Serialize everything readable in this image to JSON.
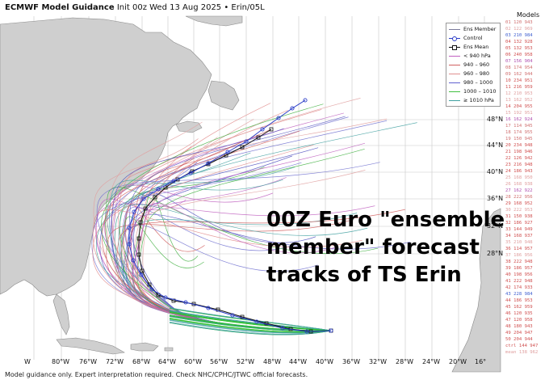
{
  "header": {
    "title_bold": "ECMWF Model Guidance",
    "title_rest": "Init 00z Wed 13 Aug 2025 • Erin/05L"
  },
  "footer": "Model guidance only. Expert interpretation required. Check NHC/CPHC/JTWC official forecasts.",
  "annotation": {
    "line1": "00Z Euro \"ensemble",
    "line2": "member\" forecast",
    "line3": "tracks of TS Erin"
  },
  "legend": {
    "items": [
      {
        "label": "Ens Member",
        "color": "#7a7a9a",
        "style": "line"
      },
      {
        "label": "Control",
        "color": "#2a3cc8",
        "style": "circle"
      },
      {
        "label": "Ens Mean",
        "color": "#111111",
        "style": "square"
      },
      {
        "label": "< 940 hPa",
        "color": "#c060c0",
        "style": "line"
      },
      {
        "label": "940 – 960",
        "color": "#d06060",
        "style": "line"
      },
      {
        "label": "960 – 980",
        "color": "#e09090",
        "style": "line"
      },
      {
        "label": "980 – 1000",
        "color": "#6060d0",
        "style": "line"
      },
      {
        "label": "1000 – 1010",
        "color": "#40c040",
        "style": "line"
      },
      {
        "label": "≥ 1010 hPa",
        "color": "#40a0a0",
        "style": "line"
      }
    ]
  },
  "models": {
    "title": "Models",
    "items": [
      {
        "label": "01 120 943",
        "color": "#d07070"
      },
      {
        "label": "02 122 969",
        "color": "#e0a0a0"
      },
      {
        "label": "03 210 984",
        "color": "#4060d0"
      },
      {
        "label": "04 132 928",
        "color": "#d05050"
      },
      {
        "label": "05 132 953",
        "color": "#d05050"
      },
      {
        "label": "06 240 958",
        "color": "#d05050"
      },
      {
        "label": "07 156 904",
        "color": "#b050b0"
      },
      {
        "label": "08 174 954",
        "color": "#d07070"
      },
      {
        "label": "09 162 944",
        "color": "#d07070"
      },
      {
        "label": "10 234 951",
        "color": "#d05050"
      },
      {
        "label": "11 216 959",
        "color": "#d05050"
      },
      {
        "label": "12 210 953",
        "color": "#e0a0a0"
      },
      {
        "label": "13 162 952",
        "color": "#e0a0a0"
      },
      {
        "label": "14 204 955",
        "color": "#d05050"
      },
      {
        "label": "15 192 951",
        "color": "#e0a0a0"
      },
      {
        "label": "16 162 924",
        "color": "#b050b0"
      },
      {
        "label": "17 114 945",
        "color": "#d07070"
      },
      {
        "label": "18 174 955",
        "color": "#d07070"
      },
      {
        "label": "19 150 945",
        "color": "#d07070"
      },
      {
        "label": "20 234 948",
        "color": "#d05050"
      },
      {
        "label": "21 198 946",
        "color": "#d05050"
      },
      {
        "label": "22 126 942",
        "color": "#d05050"
      },
      {
        "label": "23 216 948",
        "color": "#d05050"
      },
      {
        "label": "24 186 943",
        "color": "#d05050"
      },
      {
        "label": "25 168 950",
        "color": "#e0a0a0"
      },
      {
        "label": "26 168 938",
        "color": "#e0a0a0"
      },
      {
        "label": "27 162 922",
        "color": "#b050b0"
      },
      {
        "label": "28 222 956",
        "color": "#d07070"
      },
      {
        "label": "29 168 952",
        "color": "#d05050"
      },
      {
        "label": "30 222 953",
        "color": "#e0a0a0"
      },
      {
        "label": "31 150 938",
        "color": "#d05050"
      },
      {
        "label": "32 186 927",
        "color": "#d05050"
      },
      {
        "label": "33 144 949",
        "color": "#d05050"
      },
      {
        "label": "34 168 937",
        "color": "#d05050"
      },
      {
        "label": "35 210 948",
        "color": "#e0a0a0"
      },
      {
        "label": "36 114 957",
        "color": "#d05050"
      },
      {
        "label": "37 186 956",
        "color": "#e0a0a0"
      },
      {
        "label": "38 222 948",
        "color": "#d05050"
      },
      {
        "label": "39 186 957",
        "color": "#d05050"
      },
      {
        "label": "40 198 956",
        "color": "#d05050"
      },
      {
        "label": "41 222 948",
        "color": "#d05050"
      },
      {
        "label": "42 174 933",
        "color": "#d05050"
      },
      {
        "label": "43 228 984",
        "color": "#4060d0"
      },
      {
        "label": "44 186 953",
        "color": "#d05050"
      },
      {
        "label": "45 162 959",
        "color": "#d05050"
      },
      {
        "label": "46 120 935",
        "color": "#d05050"
      },
      {
        "label": "47 120 958",
        "color": "#d05050"
      },
      {
        "label": "48 180 943",
        "color": "#d05050"
      },
      {
        "label": "49 204 947",
        "color": "#d05050"
      },
      {
        "label": "50 204 944",
        "color": "#d05050"
      },
      {
        "label": "ctrl 144 947",
        "color": "#d05050"
      },
      {
        "label": "mean 138 962",
        "color": "#e0a0a0"
      }
    ]
  },
  "lat_labels": [
    "48°N",
    "44°N",
    "40°N",
    "36°N",
    "32°N",
    "28°N"
  ],
  "lon_labels": [
    "W",
    "80°W",
    "76°W",
    "72°W",
    "68°W",
    "64°W",
    "60°W",
    "56°W",
    "52°W",
    "48°W",
    "44°W",
    "40°W",
    "36°W",
    "32°W",
    "28°W",
    "24°W",
    "20°W",
    "16°"
  ],
  "colors": {
    "ocean": "#ffffff",
    "land": "#cfcfcf",
    "land_stroke": "#8a8a8a",
    "graticule": "#c8c8c8"
  }
}
